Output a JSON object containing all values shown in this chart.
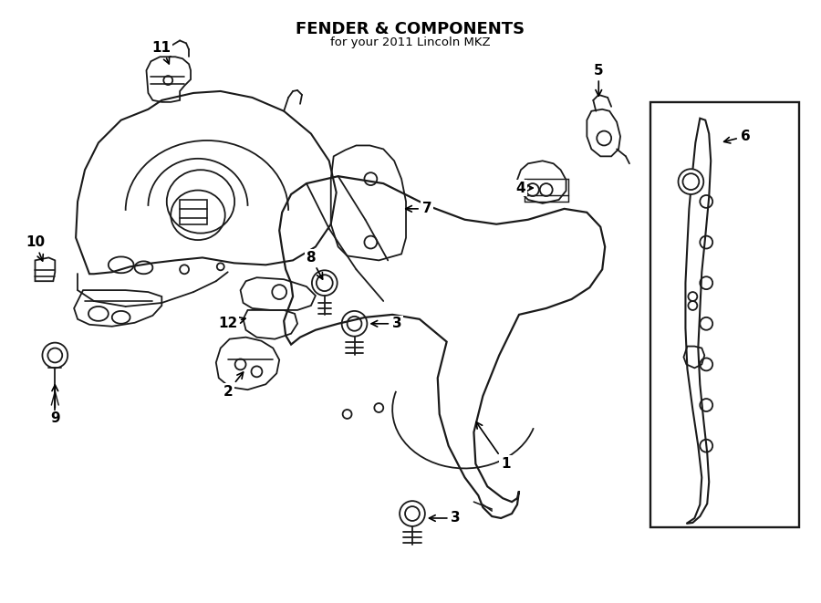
{
  "title": "FENDER & COMPONENTS",
  "subtitle": "for your 2011 Lincoln MKZ",
  "bg_color": "#ffffff",
  "line_color": "#1a1a1a",
  "text_color": "#000000",
  "fig_width": 9.0,
  "fig_height": 6.61,
  "dpi": 100
}
